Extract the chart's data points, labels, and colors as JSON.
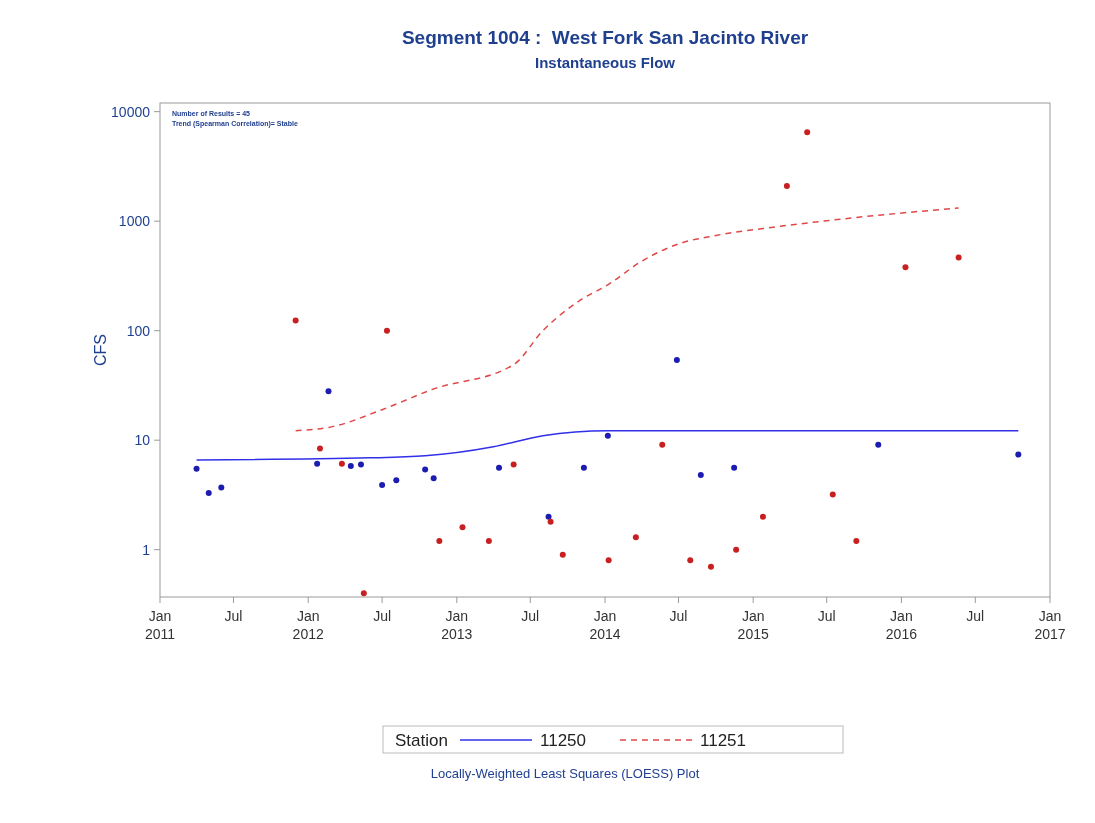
{
  "chart_data": {
    "type": "scatter",
    "title": "Segment 1004 :  West Fork San Jacinto River",
    "subtitle": "Instantaneous Flow",
    "ylabel": "CFS",
    "legend_title": "Station",
    "log": "y",
    "grid": false,
    "legend": "bottom",
    "xlim": [
      "2011-01-01",
      "2017-01-01"
    ],
    "xticks": [
      {
        "value": "2011-01-01",
        "label": "Jan 2011"
      },
      {
        "value": "2011-07-01",
        "label": "Jul"
      },
      {
        "value": "2012-01-01",
        "label": "Jan 2012"
      },
      {
        "value": "2012-07-01",
        "label": "Jul"
      },
      {
        "value": "2013-01-01",
        "label": "Jan 2013"
      },
      {
        "value": "2013-07-01",
        "label": "Jul"
      },
      {
        "value": "2014-01-01",
        "label": "Jan 2014"
      },
      {
        "value": "2014-07-01",
        "label": "Jul"
      },
      {
        "value": "2015-01-01",
        "label": "Jan 2015"
      },
      {
        "value": "2015-07-01",
        "label": "Jul"
      },
      {
        "value": "2016-01-01",
        "label": "Jan 2016"
      },
      {
        "value": "2016-07-01",
        "label": "Jul"
      },
      {
        "value": "2017-01-01",
        "label": "Jan 2017"
      }
    ],
    "ylim": [
      0.37,
      12000
    ],
    "yticks": [
      1,
      10,
      100,
      1000,
      10000
    ],
    "annotations": [
      "Number of Results = 45",
      "Trend (Spearman Correlation)= Stable",
      "Locally-Weighted Least Squares (LOESS) Plot"
    ],
    "series": [
      {
        "color": "#1c1cb0",
        "marker": "circle",
        "x": [
          "2011-04-01",
          "2011-05-01",
          "2011-06-01",
          "2012-01-23",
          "2012-02-20",
          "2012-04-15",
          "2012-05-10",
          "2012-07-01",
          "2012-08-05",
          "2012-10-15",
          "2012-11-05",
          "2013-04-15",
          "2013-08-15",
          "2013-11-10",
          "2014-01-08",
          "2014-06-27",
          "2014-08-25",
          "2014-11-15",
          "2015-11-05",
          "2016-10-15"
        ],
        "values": [
          5.5,
          3.3,
          3.7,
          6.1,
          28,
          5.8,
          6.0,
          3.9,
          4.3,
          5.4,
          4.5,
          5.6,
          2.0,
          5.6,
          11,
          54,
          4.8,
          5.6,
          9.1,
          7.4
        ]
      },
      {
        "color": "#c82020",
        "marker": "circle",
        "x": [
          "2011-12-01",
          "2012-01-30",
          "2012-03-24",
          "2012-05-17",
          "2012-07-13",
          "2012-11-19",
          "2013-01-15",
          "2013-03-21",
          "2013-05-21",
          "2013-08-20",
          "2013-09-19",
          "2014-01-10",
          "2014-03-18",
          "2014-05-22",
          "2014-07-30",
          "2014-09-19",
          "2014-11-20",
          "2015-01-25",
          "2015-03-25",
          "2015-05-14",
          "2015-07-16",
          "2015-09-12",
          "2016-01-11",
          "2016-05-21"
        ],
        "values": [
          124,
          8.4,
          6.1,
          0.4,
          100,
          1.2,
          1.6,
          1.2,
          6.0,
          1.8,
          0.9,
          0.8,
          1.3,
          9.1,
          0.8,
          0.7,
          1.0,
          2.0,
          2100,
          6500,
          3.2,
          1.2,
          380,
          465
        ]
      },
      {
        "type": "line",
        "name": "11250",
        "color": "#3030e8",
        "line_style": "solid",
        "x": [
          "2011-04-01",
          "2012-06-01",
          "2012-10-15",
          "2013-04-01",
          "2013-08-01",
          "2014-01-08",
          "2016-10-15"
        ],
        "values": [
          6.6,
          6.9,
          7.2,
          8.7,
          11,
          12.2,
          12.2
        ]
      },
      {
        "type": "line",
        "name": "11251",
        "color": "#e04848",
        "line_style": "dashed",
        "x": [
          "2011-12-01",
          "2012-03-01",
          "2012-07-01",
          "2012-11-01",
          "2013-05-21",
          "2013-08-01",
          "2013-11-01",
          "2014-01-10",
          "2014-04-01",
          "2014-07-01",
          "2014-10-01",
          "2015-03-01",
          "2015-09-01",
          "2016-05-21"
        ],
        "values": [
          12.2,
          13.3,
          19,
          29,
          49,
          100,
          190,
          265,
          430,
          620,
          740,
          890,
          1070,
          1320
        ]
      }
    ]
  }
}
